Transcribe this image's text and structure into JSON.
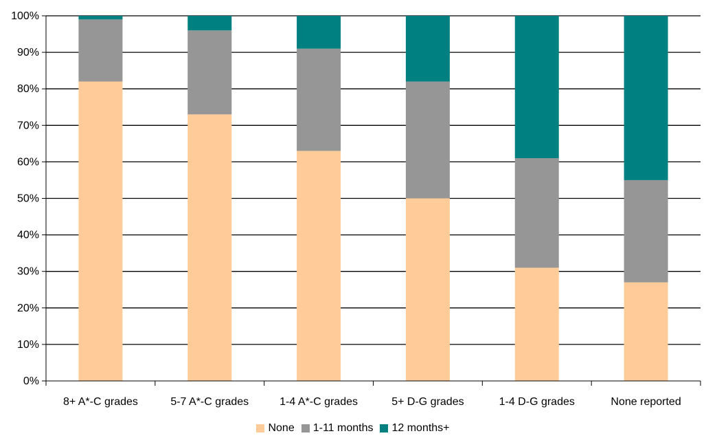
{
  "chart_data": {
    "type": "bar",
    "stacked": true,
    "categories": [
      "8+ A*-C grades",
      "5-7 A*-C grades",
      "1-4 A*-C grades",
      "5+ D-G grades",
      "1-4 D-G grades",
      "None reported"
    ],
    "series": [
      {
        "name": "None",
        "color": "#FFCC99",
        "values": [
          82,
          73,
          63,
          50,
          31,
          27
        ]
      },
      {
        "name": "1-11 months",
        "color": "#969696",
        "values": [
          17,
          23,
          28,
          32,
          30,
          28
        ]
      },
      {
        "name": "12 months+",
        "color": "#008080",
        "values": [
          1,
          4,
          9,
          18,
          39,
          45
        ]
      }
    ],
    "yticks": [
      "0%",
      "10%",
      "20%",
      "30%",
      "40%",
      "50%",
      "60%",
      "70%",
      "80%",
      "90%",
      "100%"
    ],
    "ylim": [
      0,
      100
    ],
    "grid": true,
    "legend_position": "bottom"
  }
}
